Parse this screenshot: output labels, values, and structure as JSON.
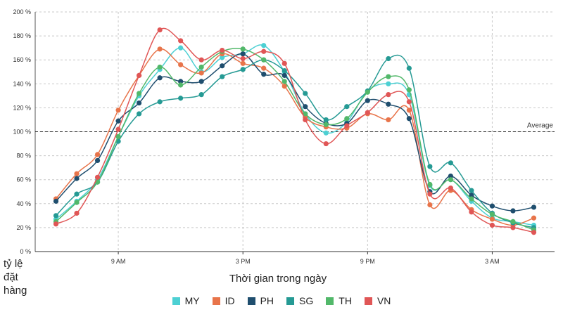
{
  "chart_data": {
    "type": "line",
    "xlabel": "Thời gian trong ngày",
    "ylabel_lines": [
      "tỷ lệ",
      "đặt",
      "hàng"
    ],
    "ylim": [
      0,
      200
    ],
    "y_ticks": [
      0,
      20,
      40,
      60,
      80,
      100,
      120,
      140,
      160,
      180,
      200
    ],
    "y_tick_labels": [
      "0 %",
      "20 %",
      "40 %",
      "60 %",
      "80 %",
      "100 %",
      "120 %",
      "140 %",
      "160 %",
      "180 %",
      "200 %"
    ],
    "x_hours": [
      6,
      7,
      8,
      9,
      10,
      11,
      12,
      13,
      14,
      15,
      16,
      17,
      18,
      19,
      20,
      21,
      22,
      23,
      24,
      25,
      26,
      27,
      28,
      29
    ],
    "x_ticks": [
      9,
      15,
      21,
      27
    ],
    "x_tick_labels": [
      "9 AM",
      "3 PM",
      "9 PM",
      "3 AM"
    ],
    "xlim": [
      5,
      30
    ],
    "grid": true,
    "average": {
      "value": 100,
      "label": "Average"
    },
    "legend_position": "bottom",
    "series": [
      {
        "name": "MY",
        "color": "#4dd0d3",
        "values": [
          27,
          42,
          60,
          96,
          130,
          152,
          170,
          150,
          162,
          165,
          172,
          150,
          115,
          99,
          108,
          134,
          140,
          131,
          55,
          60,
          42,
          28,
          25,
          22
        ]
      },
      {
        "name": "ID",
        "color": "#e8744a",
        "values": [
          44,
          65,
          81,
          118,
          147,
          169,
          156,
          149,
          165,
          157,
          153,
          138,
          112,
          104,
          103,
          115,
          110,
          118,
          39,
          51,
          35,
          27,
          22,
          28
        ]
      },
      {
        "name": "PH",
        "color": "#1f4e6e",
        "values": [
          42,
          61,
          76,
          109,
          124,
          145,
          142,
          142,
          155,
          165,
          148,
          147,
          121,
          107,
          107,
          126,
          123,
          111,
          50,
          63,
          47,
          38,
          34,
          37
        ]
      },
      {
        "name": "SG",
        "color": "#259a94",
        "values": [
          30,
          48,
          58,
          92,
          115,
          125,
          128,
          131,
          146,
          152,
          160,
          151,
          132,
          110,
          121,
          134,
          161,
          153,
          71,
          74,
          51,
          32,
          24,
          20
        ]
      },
      {
        "name": "TH",
        "color": "#52b86a",
        "values": [
          25,
          41,
          58,
          96,
          132,
          154,
          139,
          154,
          167,
          169,
          160,
          142,
          115,
          106,
          111,
          133,
          146,
          135,
          56,
          60,
          44,
          31,
          25,
          18
        ]
      },
      {
        "name": "VN",
        "color": "#e05656",
        "values": [
          23,
          32,
          62,
          102,
          147,
          185,
          176,
          160,
          168,
          161,
          167,
          157,
          110,
          90,
          105,
          116,
          131,
          125,
          48,
          53,
          33,
          22,
          20,
          16
        ]
      }
    ]
  }
}
